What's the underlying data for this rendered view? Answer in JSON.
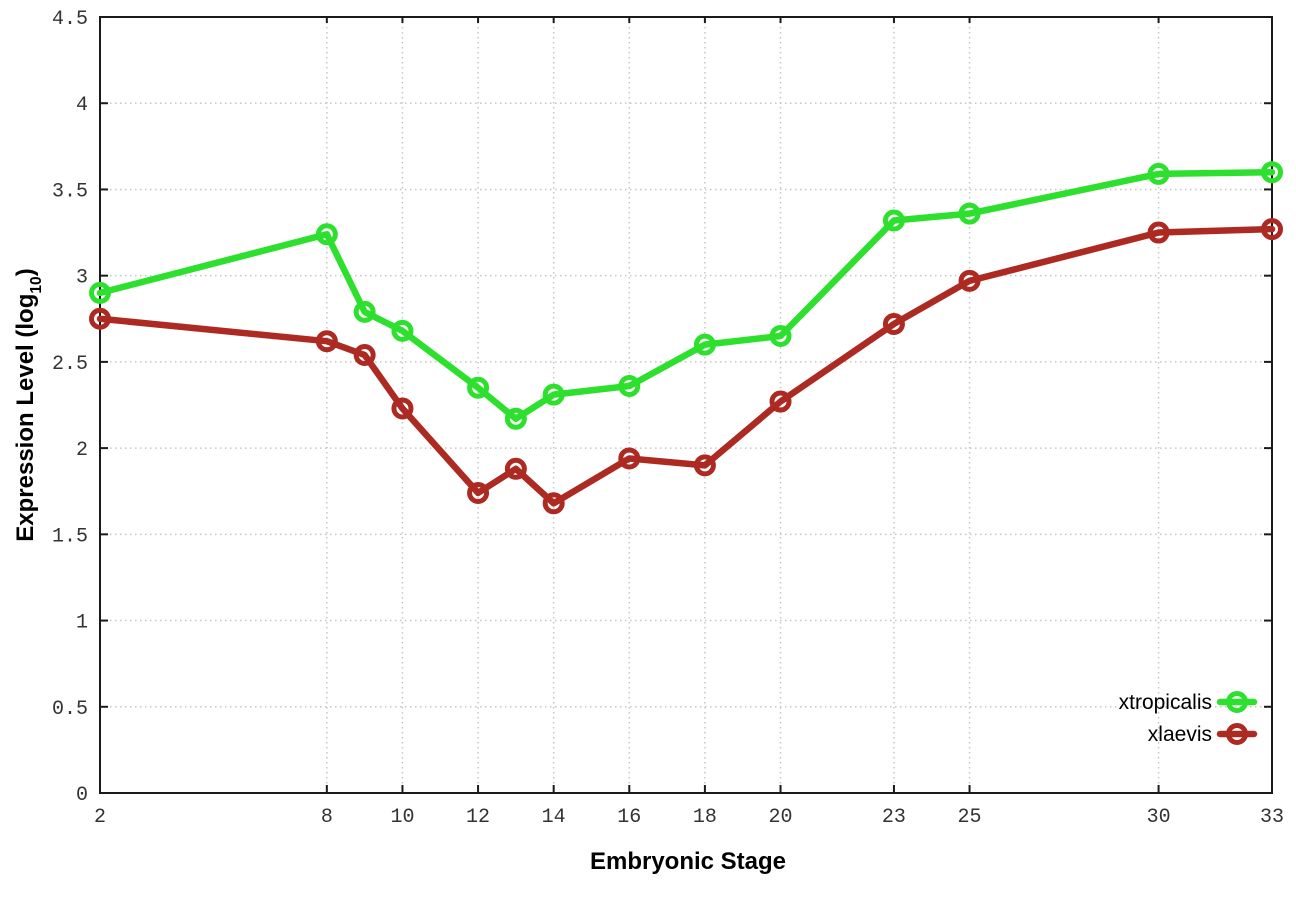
{
  "chart_data": {
    "type": "line",
    "xlabel": "Embryonic Stage",
    "ylabel": "Expression Level (log10)",
    "ylabel_parts": {
      "base": "Expression Level (log",
      "sub": "10",
      "close": ")"
    },
    "xlim": [
      2,
      33
    ],
    "ylim": [
      0,
      4.5
    ],
    "xticks": [
      2,
      8,
      10,
      12,
      14,
      16,
      18,
      20,
      23,
      25,
      30,
      33
    ],
    "yticks": [
      0,
      0.5,
      1,
      1.5,
      2,
      2.5,
      3,
      3.5,
      4,
      4.5
    ],
    "grid": true,
    "legend_position": "bottom-right",
    "x": [
      2,
      8,
      9,
      10,
      12,
      13,
      14,
      16,
      18,
      20,
      23,
      25,
      30,
      33
    ],
    "series": [
      {
        "name": "xtropicalis",
        "color": "#2ee02e",
        "values": [
          2.9,
          3.24,
          2.79,
          2.68,
          2.35,
          2.17,
          2.31,
          2.36,
          2.6,
          2.65,
          3.32,
          3.36,
          3.59,
          3.6
        ]
      },
      {
        "name": "xlaevis",
        "color": "#ac2a22",
        "values": [
          2.75,
          2.62,
          2.54,
          2.23,
          1.74,
          1.88,
          1.68,
          1.94,
          1.9,
          2.27,
          2.72,
          2.97,
          3.25,
          3.27
        ]
      }
    ],
    "colors": {
      "border": "#1a1a1a",
      "grid": "#c6c6c6",
      "tick_text": "#333333",
      "background": "#ffffff"
    }
  }
}
